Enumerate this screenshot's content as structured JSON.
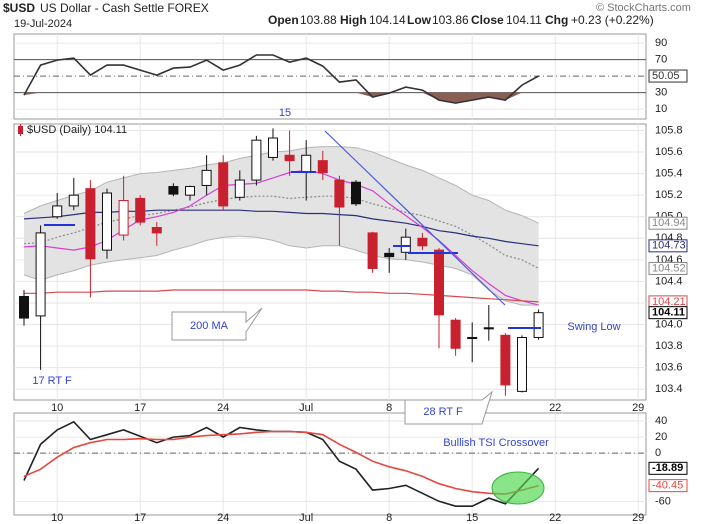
{
  "header": {
    "symbol": "$USD",
    "name": "US Dollar - Cash Settle FOREX",
    "date": "19-Jul-2024",
    "watermark": "© StockCharts.com",
    "quote": [
      {
        "label": "Open",
        "value": 103.88
      },
      {
        "label": "High",
        "value": 104.14
      },
      {
        "label": "Low",
        "value": 103.86
      },
      {
        "label": "Close",
        "value": 104.11
      },
      {
        "label": "Chg",
        "value": "+0.23 (+0.22%)"
      }
    ]
  },
  "chart_data": [
    {
      "type": "line",
      "ylim": [
        -2,
        101
      ],
      "yticks": [
        90,
        70,
        30,
        10
      ],
      "midline": 50,
      "overbought": 70,
      "oversold": 30,
      "oversold_fill": "#8b5e55",
      "series": [
        {
          "color": "#333333",
          "values": [
            27.0,
            63.3,
            69.4,
            71.8,
            51.2,
            63.3,
            63.3,
            57.3,
            51.2,
            59.7,
            60.9,
            69.4,
            57.3,
            63.3,
            75.5,
            75.5,
            67.0,
            71.8,
            62.1,
            42.7,
            45.2,
            24.5,
            29.4,
            36.7,
            33.0,
            20.9,
            17.3,
            20.9,
            24.5,
            20.9,
            39.1,
            50.05,
            null,
            null,
            null,
            null,
            null,
            null
          ]
        }
      ],
      "last_values": [
        {
          "value": 50.05,
          "color": "#333333"
        }
      ]
    },
    {
      "type": "candlestick",
      "legend": "$USD (Daily) 104.11",
      "up_color": "#111111",
      "down_color": "#c8202f",
      "annotation_color": "#3344cc",
      "categories": [
        null,
        null,
        "10",
        null,
        null,
        null,
        null,
        "17",
        null,
        null,
        null,
        null,
        "24",
        null,
        null,
        null,
        null,
        "Jul",
        null,
        null,
        null,
        null,
        "8",
        null,
        null,
        null,
        null,
        "15",
        null,
        null,
        null,
        null,
        "22",
        null,
        null,
        null,
        null,
        "29"
      ],
      "open": [
        104.26,
        104.08,
        105.0,
        105.1,
        105.26,
        104.69,
        104.83,
        105.17,
        104.9,
        105.28,
        105.2,
        105.29,
        105.5,
        105.18,
        105.34,
        105.55,
        105.57,
        105.41,
        105.52,
        105.34,
        105.32,
        104.85,
        104.66,
        104.67,
        104.8,
        104.69,
        104.04,
        103.88,
        103.97,
        103.9,
        103.38,
        103.88,
        null,
        null,
        null,
        null,
        null,
        null
      ],
      "high": [
        104.32,
        104.92,
        105.22,
        105.36,
        105.34,
        105.26,
        105.38,
        105.2,
        104.95,
        105.31,
        105.29,
        105.57,
        105.57,
        105.43,
        105.75,
        105.82,
        105.8,
        105.71,
        105.61,
        105.38,
        105.34,
        104.86,
        104.71,
        104.89,
        104.85,
        104.71,
        104.06,
        104.02,
        104.18,
        103.92,
        103.9,
        104.14,
        null,
        null,
        null,
        null,
        null,
        null
      ],
      "low": [
        103.99,
        103.58,
        104.98,
        105.06,
        104.25,
        104.61,
        104.78,
        104.92,
        104.73,
        105.19,
        105.15,
        105.2,
        105.06,
        105.15,
        105.29,
        105.52,
        105.38,
        105.15,
        105.34,
        104.73,
        105.1,
        104.48,
        104.48,
        104.6,
        104.69,
        103.78,
        103.71,
        103.65,
        103.85,
        103.34,
        103.37,
        103.86,
        null,
        null,
        null,
        null,
        null,
        null
      ],
      "close": [
        104.06,
        104.85,
        105.1,
        105.2,
        104.61,
        105.22,
        105.15,
        104.95,
        104.85,
        105.21,
        105.28,
        105.43,
        105.1,
        105.34,
        105.71,
        105.73,
        105.52,
        105.57,
        105.41,
        105.09,
        105.12,
        104.52,
        104.63,
        104.81,
        104.73,
        104.09,
        103.78,
        103.87,
        103.96,
        103.44,
        103.88,
        104.11,
        null,
        null,
        null,
        null,
        null,
        null
      ],
      "bands": {
        "fill": "#e3e3e3",
        "edge": "#b5b5b5",
        "upper": [
          105.03,
          105.1,
          105.15,
          105.2,
          105.24,
          105.32,
          105.36,
          105.4,
          105.41,
          105.43,
          105.45,
          105.48,
          105.5,
          105.54,
          105.57,
          105.6,
          105.61,
          105.64,
          105.65,
          105.65,
          105.64,
          105.6,
          105.54,
          105.48,
          105.43,
          105.36,
          105.29,
          105.2,
          105.15,
          105.06,
          105.01,
          104.94,
          null,
          null,
          null,
          null,
          null,
          null
        ],
        "lower": [
          104.46,
          104.41,
          104.46,
          104.5,
          104.55,
          104.58,
          104.6,
          104.62,
          104.64,
          104.69,
          104.73,
          104.78,
          104.81,
          104.82,
          104.81,
          104.78,
          104.73,
          104.71,
          104.73,
          104.73,
          104.69,
          104.64,
          104.61,
          104.6,
          104.58,
          104.55,
          104.52,
          104.46,
          104.32,
          104.22,
          104.18,
          104.18,
          null,
          null,
          null,
          null,
          null,
          null
        ]
      },
      "series": [
        {
          "color": "#888888",
          "dash": true,
          "values": [
            104.75,
            104.76,
            104.81,
            104.85,
            104.9,
            104.95,
            104.98,
            105.01,
            105.03,
            105.06,
            105.09,
            105.13,
            105.16,
            105.18,
            105.19,
            105.19,
            105.17,
            105.18,
            105.19,
            105.19,
            105.17,
            105.12,
            105.08,
            105.04,
            105.01,
            104.96,
            104.91,
            104.83,
            104.74,
            104.64,
            104.6,
            104.52,
            null,
            null,
            null,
            null,
            null,
            null
          ]
        },
        {
          "color": "#2a2f7a",
          "values": [
            104.98,
            104.99,
            105.0,
            105.02,
            105.04,
            105.04,
            105.05,
            105.05,
            105.06,
            105.06,
            105.06,
            105.06,
            105.06,
            105.06,
            105.05,
            105.05,
            105.04,
            105.03,
            105.03,
            105.02,
            105.01,
            104.98,
            104.96,
            104.94,
            104.91,
            104.87,
            104.85,
            104.82,
            104.8,
            104.77,
            104.75,
            104.73,
            null,
            null,
            null,
            null,
            null,
            null
          ]
        },
        {
          "color": "#d63fd6",
          "values": [
            104.72,
            104.73,
            104.71,
            104.69,
            104.72,
            104.78,
            104.88,
            104.97,
            105.0,
            105.04,
            105.1,
            105.2,
            105.29,
            105.3,
            105.31,
            105.36,
            105.41,
            105.43,
            105.4,
            105.34,
            105.3,
            105.24,
            105.12,
            105.01,
            104.9,
            104.78,
            104.64,
            104.5,
            104.38,
            104.27,
            104.22,
            104.18,
            null,
            null,
            null,
            null,
            null,
            null
          ]
        },
        {
          "color": "#d9474f",
          "values": [
            104.29,
            104.29,
            104.3,
            104.3,
            104.3,
            104.31,
            104.31,
            104.31,
            104.31,
            104.32,
            104.32,
            104.32,
            104.32,
            104.32,
            104.32,
            104.32,
            104.32,
            104.32,
            104.31,
            104.31,
            104.3,
            104.3,
            104.29,
            104.29,
            104.28,
            104.27,
            104.26,
            104.25,
            104.24,
            104.23,
            104.22,
            104.21,
            null,
            null,
            null,
            null,
            null,
            null
          ]
        }
      ],
      "ylim": [
        103.3,
        105.86
      ],
      "yticks": [
        105.8,
        105.6,
        105.4,
        105.2,
        {
          "value": 105.0,
          "label": "105.0"
        },
        104.8,
        104.6,
        104.4,
        104.2,
        {
          "value": 104.0,
          "label": "104.0"
        },
        103.8,
        103.6,
        103.4
      ],
      "last_values": [
        {
          "value": 104.94,
          "color": "#888888"
        },
        {
          "value": 104.73,
          "color": "#2a2f7a"
        },
        {
          "value": 104.52,
          "color": "#888888"
        },
        {
          "value": 104.21,
          "color": "#d9474f"
        },
        {
          "value": 104.11,
          "color": "#000000"
        }
      ],
      "annotations": [
        "15",
        "200 MA",
        "17 RT F",
        "28 RT F",
        "Swing Low"
      ]
    },
    {
      "type": "line",
      "ylim": [
        -77,
        50
      ],
      "yticks": [
        40,
        20,
        0,
        -60
      ],
      "midline": 0,
      "annotation_color": "#3344cc",
      "annotations": [
        "Bullish TSI Crossover"
      ],
      "series": [
        {
          "color": "#222222",
          "values": [
            -34,
            11,
            29,
            39,
            17,
            23,
            29,
            21,
            13,
            20,
            22,
            32,
            20,
            32,
            29,
            27,
            27,
            26,
            17,
            -10,
            -20,
            -46,
            -44,
            -40,
            -50,
            -60,
            -66,
            -66,
            -56,
            -63,
            -41,
            -18.89,
            null,
            null,
            null,
            null,
            null,
            null
          ]
        },
        {
          "color": "#e5483f",
          "values": [
            -29,
            -20,
            -5,
            7,
            13,
            17,
            17,
            18,
            17,
            17,
            20,
            22,
            23,
            24,
            26,
            27,
            27,
            26,
            23,
            11,
            1,
            -10,
            -17,
            -22,
            -29,
            -38,
            -44,
            -48,
            -50,
            -51,
            -46,
            -40.45,
            null,
            null,
            null,
            null,
            null,
            null
          ]
        }
      ],
      "last_values": [
        {
          "value": -18.89,
          "color": "#000000"
        },
        {
          "value": -40.45,
          "color": "#e5483f"
        }
      ]
    }
  ]
}
